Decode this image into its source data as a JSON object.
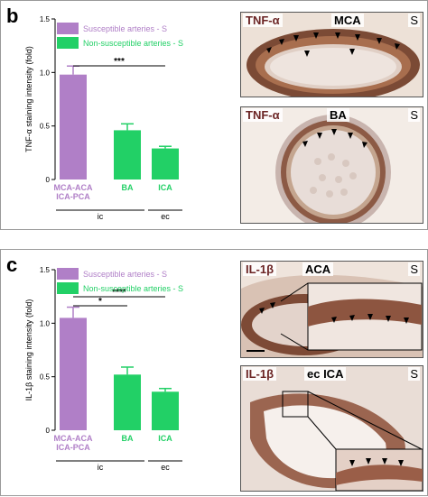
{
  "panels": {
    "b": {
      "letter": "b"
    },
    "c": {
      "letter": "c"
    }
  },
  "chart_data": [
    {
      "type": "bar",
      "panel": "b",
      "ylabel": "TNF-α staining intensity (fold)",
      "ylim": [
        0,
        1.5
      ],
      "yticks": [
        0,
        0.5,
        1.0,
        1.5
      ],
      "ytick_labels": [
        "0",
        "0.5",
        "1.0",
        "1.5"
      ],
      "categories": [
        "MCA-ACA ICA-PCA",
        "BA",
        "ICA"
      ],
      "category_lines": [
        [
          "MCA-ACA",
          "ICA-PCA"
        ],
        [
          "BA"
        ],
        [
          "ICA"
        ]
      ],
      "values": [
        0.98,
        0.46,
        0.29
      ],
      "errors": [
        0.08,
        0.06,
        0.02
      ],
      "bar_series": [
        0,
        1,
        1
      ],
      "legend": [
        {
          "name": "Susceptible arteries - S",
          "color": "#b07fc7"
        },
        {
          "name": "Non-susceptible arteries - S",
          "color": "#22d066"
        }
      ],
      "legend_position": "top-left",
      "groups": [
        {
          "label": "ic",
          "from": 0,
          "to": 1
        },
        {
          "label": "ec",
          "from": 2,
          "to": 2
        }
      ],
      "significance": [
        {
          "label": "***",
          "from": 0,
          "to": 2
        }
      ]
    },
    {
      "type": "bar",
      "panel": "c",
      "ylabel": "IL-1β staining intensity (fold)",
      "ylim": [
        0,
        1.5
      ],
      "yticks": [
        0,
        0.5,
        1.0,
        1.5
      ],
      "ytick_labels": [
        "0",
        "0.5",
        "1.0",
        "1.5"
      ],
      "categories": [
        "MCA-ACA ICA-PCA",
        "BA",
        "ICA"
      ],
      "category_lines": [
        [
          "MCA-ACA",
          "ICA-PCA"
        ],
        [
          "BA"
        ],
        [
          "ICA"
        ]
      ],
      "values": [
        1.05,
        0.52,
        0.36
      ],
      "errors": [
        0.1,
        0.07,
        0.03
      ],
      "bar_series": [
        0,
        1,
        1
      ],
      "legend": [
        {
          "name": "Susceptible arteries - S",
          "color": "#b07fc7"
        },
        {
          "name": "Non-susceptible arteries - S",
          "color": "#22d066"
        }
      ],
      "legend_position": "top-left",
      "groups": [
        {
          "label": "ic",
          "from": 0,
          "to": 1
        },
        {
          "label": "ec",
          "from": 2,
          "to": 2
        }
      ],
      "significance": [
        {
          "label": "*",
          "from": 0,
          "to": 1
        },
        {
          "label": "****",
          "from": 0,
          "to": 2
        }
      ]
    }
  ],
  "micrographs": [
    {
      "id": "b-top",
      "stain": "TNF-α",
      "vessel": "MCA",
      "group": "S",
      "shape": "oval"
    },
    {
      "id": "b-bottom",
      "stain": "TNF-α",
      "vessel": "BA",
      "group": "S",
      "shape": "round"
    },
    {
      "id": "c-top",
      "stain": "IL-1β",
      "vessel": "ACA",
      "group": "S",
      "shape": "oval-inset"
    },
    {
      "id": "c-bottom",
      "stain": "IL-1β",
      "vessel": "ec ICA",
      "group": "S",
      "shape": "oval-inset"
    }
  ]
}
